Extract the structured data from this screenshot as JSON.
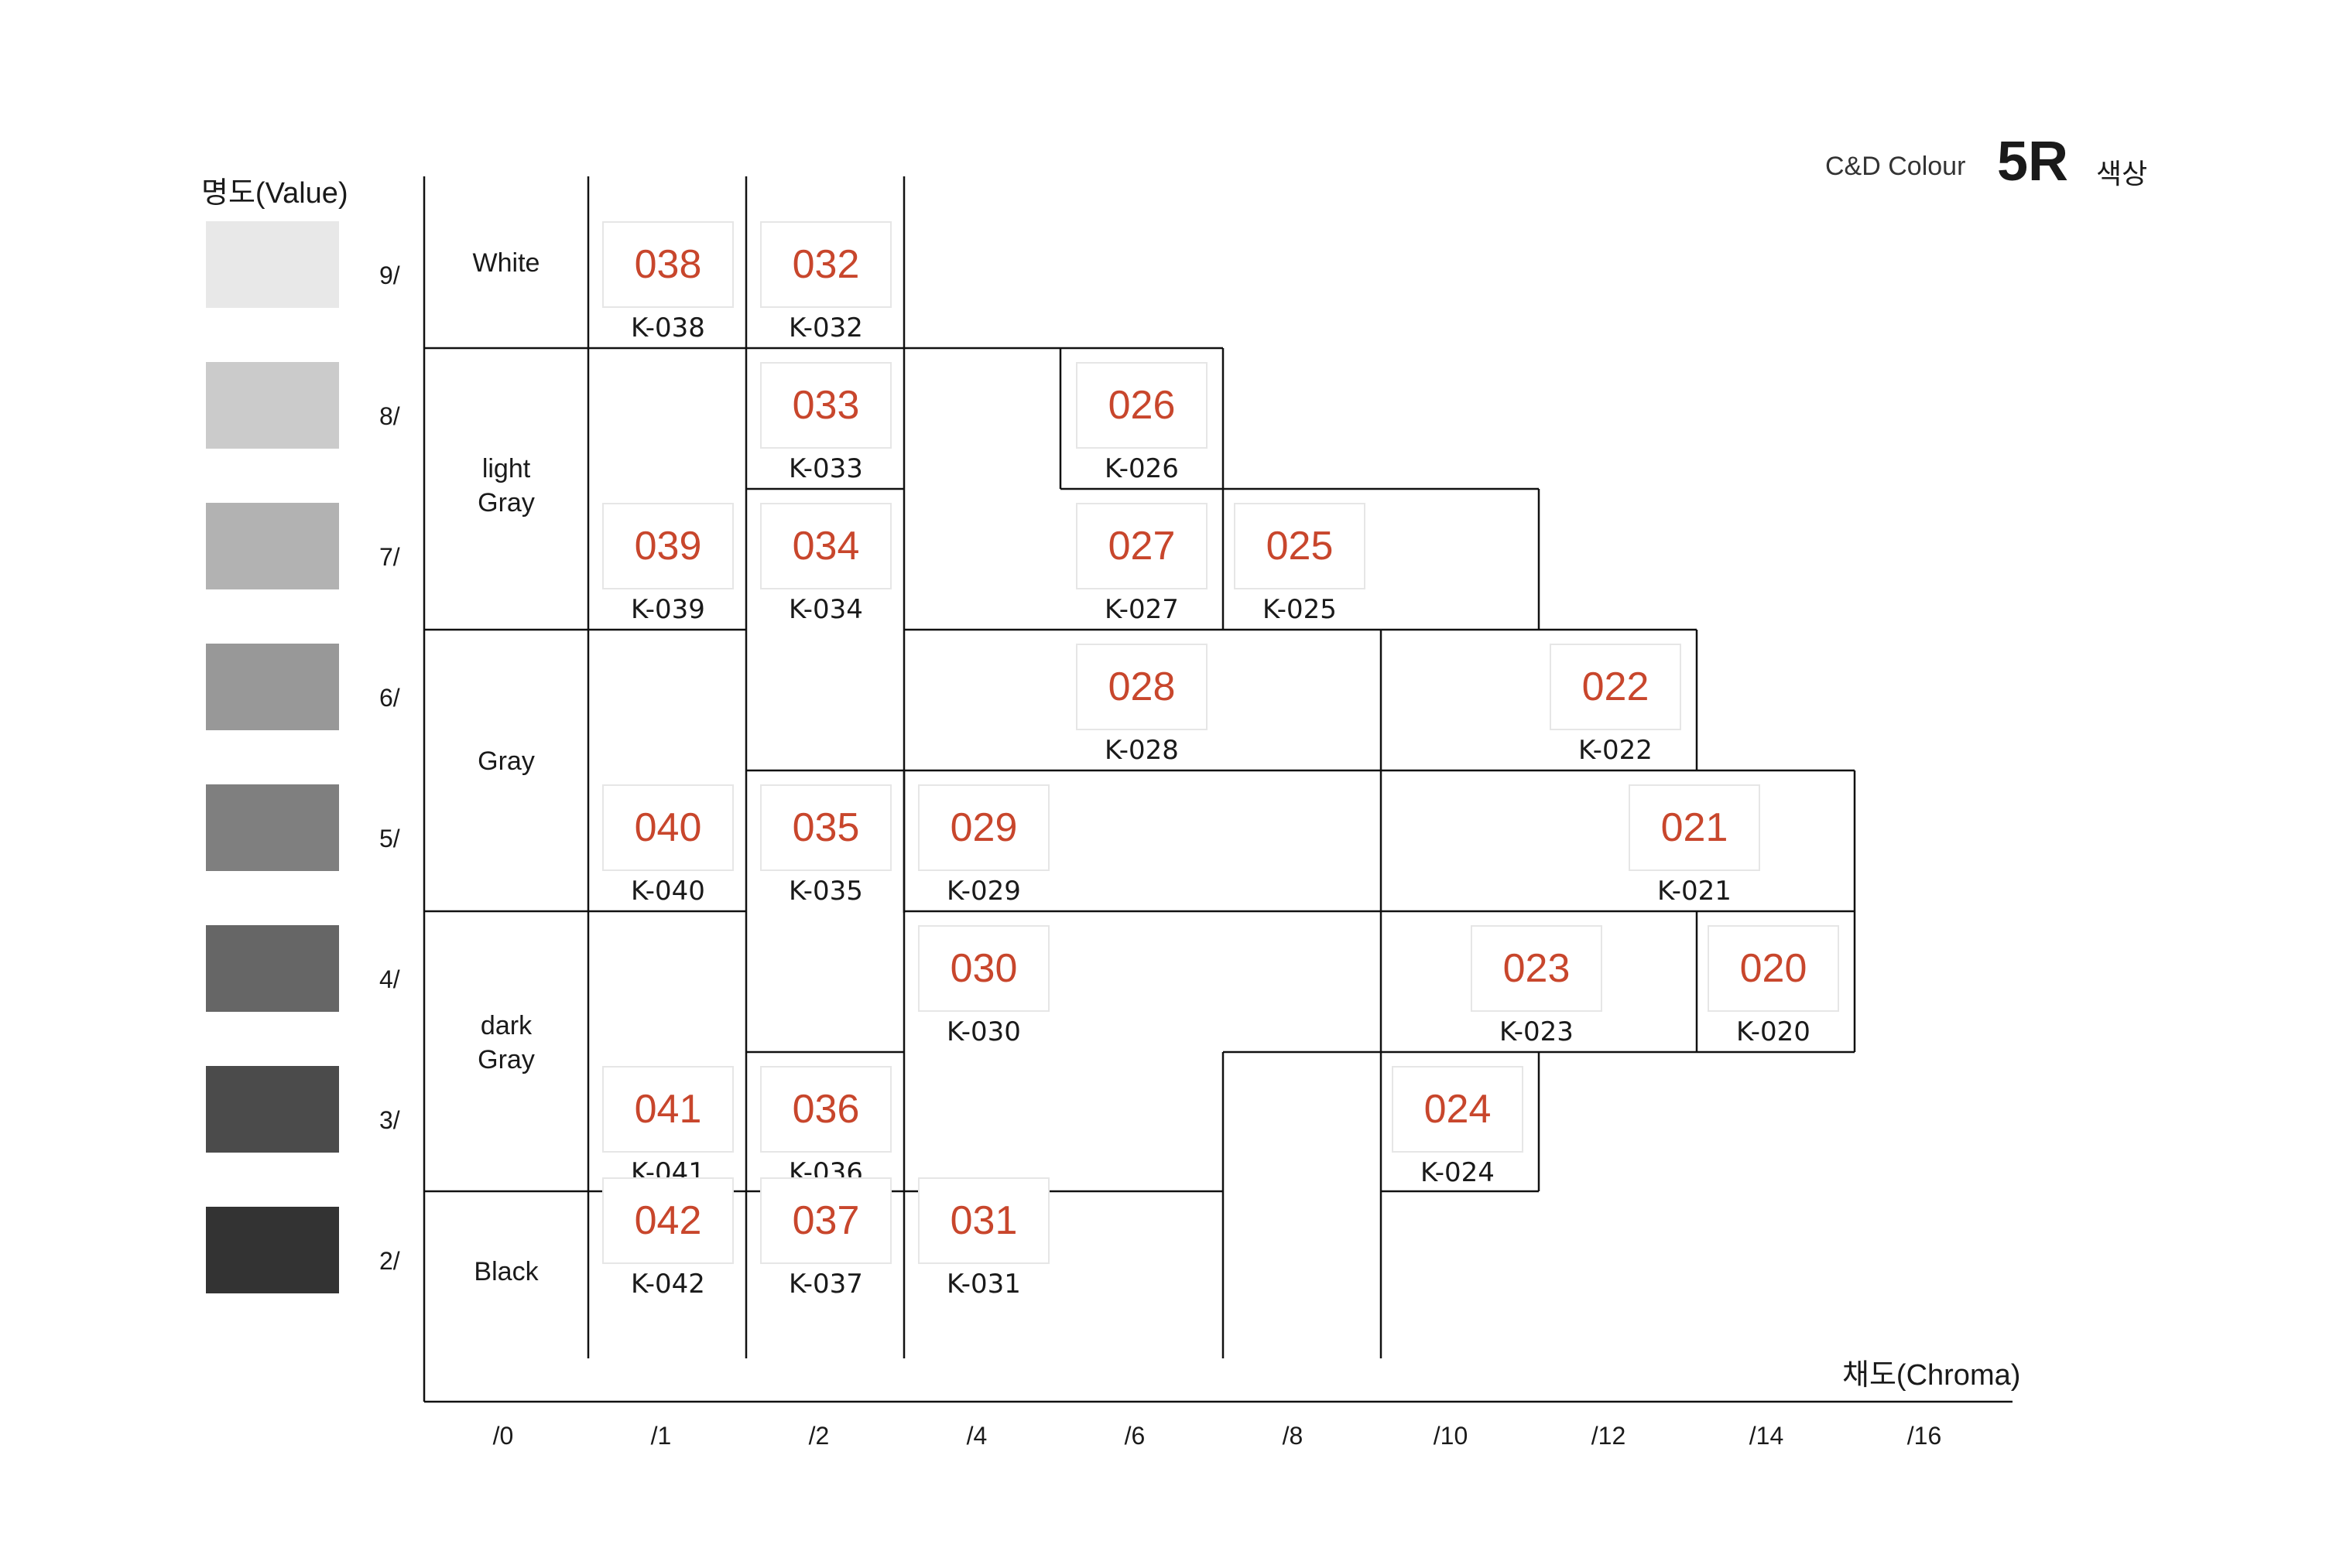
{
  "header": {
    "brand": "C&D Colour",
    "hue": "5R",
    "hue_suffix": "색상"
  },
  "axis": {
    "y_title": "명도(Value)",
    "x_title": "채도(Chroma)"
  },
  "value_rows": [
    {
      "label": "9/",
      "color": "#e8e8e8"
    },
    {
      "label": "8/",
      "color": "#cbcbcb"
    },
    {
      "label": "7/",
      "color": "#b2b2b2"
    },
    {
      "label": "6/",
      "color": "#989898"
    },
    {
      "label": "5/",
      "color": "#7f7f7f"
    },
    {
      "label": "4/",
      "color": "#666666"
    },
    {
      "label": "3/",
      "color": "#4b4b4b"
    },
    {
      "label": "2/",
      "color": "#333333"
    }
  ],
  "tone_groups": [
    {
      "lines": [
        "White"
      ]
    },
    {
      "lines": [
        "light",
        "Gray"
      ]
    },
    {
      "lines": [
        "Gray"
      ]
    },
    {
      "lines": [
        "dark",
        "Gray"
      ]
    },
    {
      "lines": [
        "Black"
      ]
    }
  ],
  "chroma_labels": [
    "/0",
    "/1",
    "/2",
    "/4",
    "/6",
    "/8",
    "/10",
    "/12",
    "/14",
    "/16"
  ],
  "cells": [
    {
      "num": "038",
      "code": "K-038",
      "value": 9,
      "chroma_col": 1
    },
    {
      "num": "032",
      "code": "K-032",
      "value": 9,
      "chroma_col": 2
    },
    {
      "num": "033",
      "code": "K-033",
      "value": 8,
      "chroma_col": 2
    },
    {
      "num": "026",
      "code": "K-026",
      "value": 8,
      "chroma_col": 4
    },
    {
      "num": "039",
      "code": "K-039",
      "value": 7,
      "chroma_col": 1
    },
    {
      "num": "034",
      "code": "K-034",
      "value": 7,
      "chroma_col": 2
    },
    {
      "num": "027",
      "code": "K-027",
      "value": 7,
      "chroma_col": 4
    },
    {
      "num": "025",
      "code": "K-025",
      "value": 7,
      "chroma_col": 5
    },
    {
      "num": "028",
      "code": "K-028",
      "value": 6,
      "chroma_col": 4
    },
    {
      "num": "022",
      "code": "K-022",
      "value": 6,
      "chroma_col": 7
    },
    {
      "num": "040",
      "code": "K-040",
      "value": 5,
      "chroma_col": 1
    },
    {
      "num": "035",
      "code": "K-035",
      "value": 5,
      "chroma_col": 2
    },
    {
      "num": "029",
      "code": "K-029",
      "value": 5,
      "chroma_col": 3
    },
    {
      "num": "021",
      "code": "K-021",
      "value": 5,
      "chroma_col": 7.5
    },
    {
      "num": "030",
      "code": "K-030",
      "value": 4,
      "chroma_col": 3
    },
    {
      "num": "023",
      "code": "K-023",
      "value": 4,
      "chroma_col": 6.5
    },
    {
      "num": "020",
      "code": "K-020",
      "value": 4,
      "chroma_col": 8
    },
    {
      "num": "041",
      "code": "K-041",
      "value": 3,
      "chroma_col": 1
    },
    {
      "num": "036",
      "code": "K-036",
      "value": 3,
      "chroma_col": 2
    },
    {
      "num": "024",
      "code": "K-024",
      "value": 3,
      "chroma_col": 6
    },
    {
      "num": "042",
      "code": "K-042",
      "value": 2,
      "chroma_col": 1
    },
    {
      "num": "037",
      "code": "K-037",
      "value": 2,
      "chroma_col": 2
    },
    {
      "num": "031",
      "code": "K-031",
      "value": 2,
      "chroma_col": 3
    }
  ]
}
